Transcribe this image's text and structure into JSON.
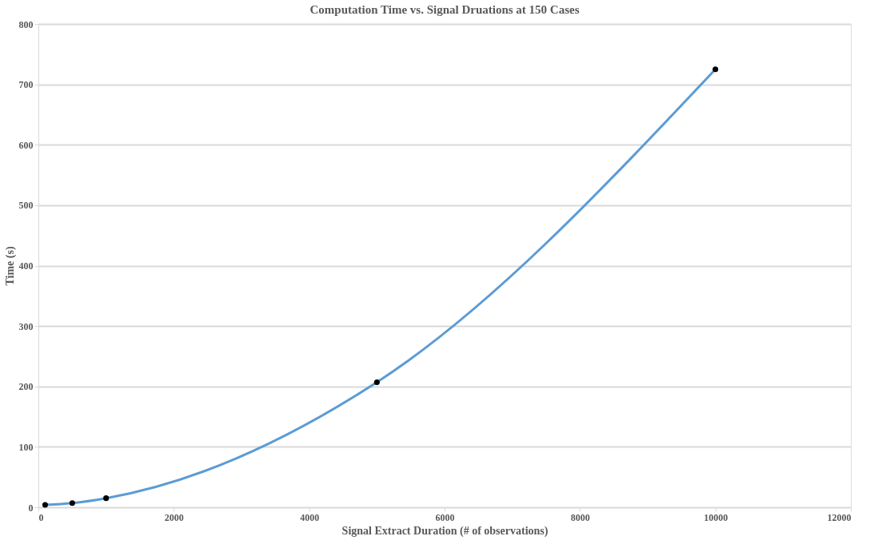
{
  "chart_data": {
    "type": "line",
    "title": "Computation Time vs. Signal Druations at 150 Cases",
    "xlabel": "Signal Extract Duration (# of observations)",
    "ylabel": "Time (s)",
    "x": [
      100,
      500,
      1000,
      5000,
      10000
    ],
    "series": [
      {
        "color": "#5b9bd5",
        "marker": "none",
        "line_style": "solid",
        "values": [
          4,
          7,
          15,
          207,
          725
        ]
      },
      {
        "type": "scatter",
        "color": "#000000",
        "marker": "circle",
        "values": [
          4,
          7,
          15,
          207,
          725
        ]
      }
    ],
    "xlim": [
      0,
      12000
    ],
    "xticks": [
      0,
      2000,
      4000,
      6000,
      8000,
      10000,
      12000
    ],
    "ylim": [
      0,
      800
    ],
    "yticks": [
      0,
      100,
      200,
      300,
      400,
      500,
      600,
      700,
      800
    ],
    "grid": "y"
  }
}
